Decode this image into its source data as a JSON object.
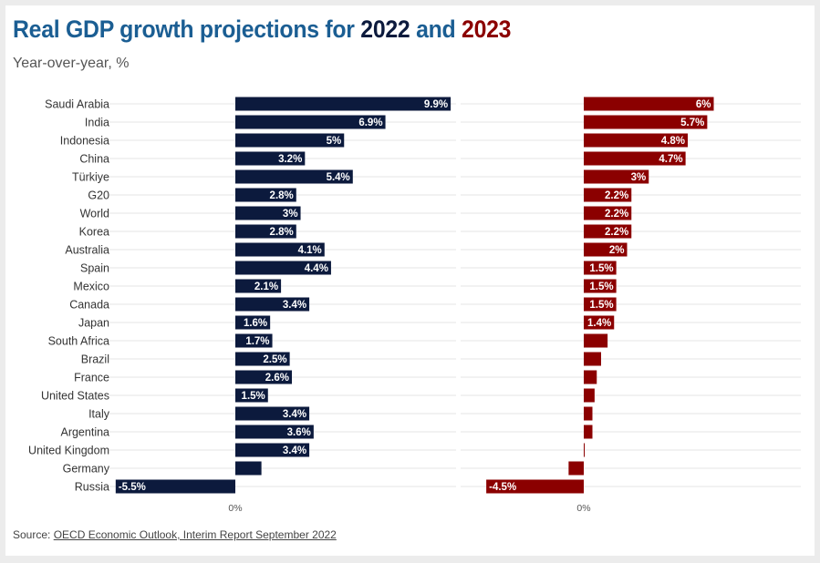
{
  "title": {
    "prefix": "Real GDP growth projections for ",
    "year1": "2022",
    "conjunction": " and ",
    "year2": "2023"
  },
  "subtitle": "Year-over-year, %",
  "source": {
    "label": "Source: ",
    "link_text": "OECD Economic Outlook, Interim Report September 2022"
  },
  "colors": {
    "title": "#1b5e93",
    "series_2022": "#0c1a3d",
    "series_2023": "#8b0000"
  },
  "chart_data": {
    "type": "bar",
    "orientation": "horizontal",
    "categories": [
      "Saudi Arabia",
      "India",
      "Indonesia",
      "China",
      "Türkiye",
      "G20",
      "World",
      "Korea",
      "Australia",
      "Spain",
      "Mexico",
      "Canada",
      "Japan",
      "South Africa",
      "Brazil",
      "France",
      "United States",
      "Italy",
      "Argentina",
      "United Kingdom",
      "Germany",
      "Russia"
    ],
    "series": [
      {
        "name": "2022",
        "color": "#0c1a3d",
        "values": [
          9.9,
          6.9,
          5,
          3.2,
          5.4,
          2.8,
          3,
          2.8,
          4.1,
          4.4,
          2.1,
          3.4,
          1.6,
          1.7,
          2.5,
          2.6,
          1.5,
          3.4,
          3.6,
          3.4,
          1.2,
          -5.5
        ],
        "labels": [
          "9.9%",
          "6.9%",
          "5%",
          "3.2%",
          "5.4%",
          "2.8%",
          "3%",
          "2.8%",
          "4.1%",
          "4.4%",
          "2.1%",
          "3.4%",
          "1.6%",
          "1.7%",
          "2.5%",
          "2.6%",
          "1.5%",
          "3.4%",
          "3.6%",
          "3.4%",
          "",
          "-5.5%"
        ]
      },
      {
        "name": "2023",
        "color": "#8b0000",
        "values": [
          6,
          5.7,
          4.8,
          4.7,
          3,
          2.2,
          2.2,
          2.2,
          2,
          1.5,
          1.5,
          1.5,
          1.4,
          1.1,
          0.8,
          0.6,
          0.5,
          0.4,
          0.4,
          0,
          -0.7,
          -4.5
        ],
        "labels": [
          "6%",
          "5.7%",
          "4.8%",
          "4.7%",
          "3%",
          "2.2%",
          "2.2%",
          "2.2%",
          "2%",
          "1.5%",
          "1.5%",
          "1.5%",
          "1.4%",
          "",
          "",
          "",
          "",
          "",
          "",
          "",
          "",
          "-4.5%"
        ]
      }
    ],
    "zero_label": "0%",
    "grid": true
  }
}
